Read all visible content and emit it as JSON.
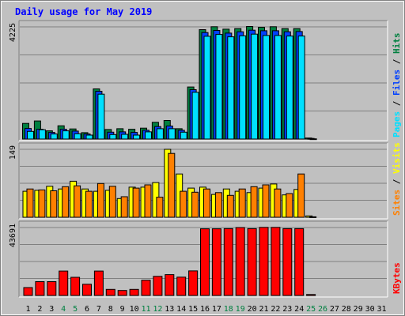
{
  "chart_data": {
    "type": "bar",
    "title": "Daily usage for May 2019",
    "colors": {
      "background": "#c0c0c0",
      "plot": "#c0c0c0",
      "gridline": "#808080",
      "title": "#0000ff",
      "hits": "#008040",
      "files": "#0040ff",
      "pages": "#00e0ff",
      "visits": "#ffff00",
      "sites": "#ff8000",
      "kbytes": "#ff0000",
      "weekend_day": "#008040",
      "weekday": "#000000"
    },
    "categories": [
      "1",
      "2",
      "3",
      "4",
      "5",
      "6",
      "7",
      "8",
      "9",
      "10",
      "11",
      "12",
      "13",
      "14",
      "15",
      "16",
      "17",
      "18",
      "19",
      "20",
      "21",
      "22",
      "23",
      "24",
      "25",
      "26",
      "27",
      "28",
      "29",
      "30",
      "31"
    ],
    "weekend_days": [
      "4",
      "5",
      "11",
      "12",
      "18",
      "19",
      "25",
      "26"
    ],
    "panels": [
      {
        "name": "hits-files-pages",
        "ymax_label": "4225",
        "ylim": [
          0,
          4225
        ],
        "legend": [
          {
            "text": "Pages",
            "color": "#00e0ff"
          },
          {
            "text": " / ",
            "color": "#000000"
          },
          {
            "text": "Files",
            "color": "#0040ff"
          },
          {
            "text": " / ",
            "color": "#000000"
          },
          {
            "text": "Hits",
            "color": "#008040"
          }
        ],
        "series": [
          {
            "name": "Hits",
            "color": "#008040",
            "values": [
              590,
              680,
              310,
              500,
              380,
              240,
              1890,
              360,
              390,
              370,
              410,
              630,
              700,
              390,
              1960,
              4120,
              4230,
              4140,
              4160,
              4240,
              4210,
              4230,
              4160,
              4160,
              40,
              0,
              0,
              0,
              0,
              0,
              0
            ]
          },
          {
            "name": "Files",
            "color": "#0040ff",
            "values": [
              400,
              370,
              250,
              370,
              300,
              190,
              1800,
              260,
              270,
              250,
              330,
              470,
              490,
              330,
              1860,
              4010,
              4090,
              3990,
              4040,
              4100,
              4080,
              4080,
              4040,
              4050,
              25,
              0,
              0,
              0,
              0,
              0,
              0
            ]
          },
          {
            "name": "Pages",
            "color": "#00e0ff",
            "values": [
              290,
              350,
              190,
              310,
              200,
              150,
              1690,
              170,
              180,
              150,
              270,
              390,
              390,
              260,
              1760,
              3870,
              3940,
              3850,
              3890,
              3950,
              3900,
              3900,
              3880,
              3880,
              10,
              0,
              0,
              0,
              0,
              0,
              0
            ]
          }
        ]
      },
      {
        "name": "visits-sites",
        "ymax_label": "149",
        "ylim": [
          0,
          149
        ],
        "legend": [
          {
            "text": "Sites",
            "color": "#ff8000"
          },
          {
            "text": " / ",
            "color": "#000000"
          },
          {
            "text": "Visits",
            "color": "#ffff00"
          }
        ],
        "series": [
          {
            "name": "Visits",
            "color": "#ffff00",
            "values": [
              57,
              59,
              68,
              62,
              79,
              62,
              57,
              59,
              41,
              66,
              66,
              76,
              149,
              95,
              64,
              66,
              50,
              62,
              57,
              54,
              64,
              73,
              49,
              61,
              3,
              0,
              0,
              0,
              0,
              0,
              0
            ]
          },
          {
            "name": "Sites",
            "color": "#ff8000",
            "values": [
              62,
              60,
              58,
              67,
              69,
              57,
              74,
              68,
              45,
              64,
              71,
              44,
              140,
              57,
              55,
              62,
              54,
              48,
              62,
              67,
              71,
              62,
              52,
              95,
              1,
              0,
              0,
              0,
              0,
              0,
              0
            ]
          }
        ]
      },
      {
        "name": "kbytes",
        "ymax_label": "43691",
        "ylim": [
          0,
          43691
        ],
        "legend": [
          {
            "text": "KBytes",
            "color": "#ff0000"
          }
        ],
        "series": [
          {
            "name": "KBytes",
            "color": "#ff0000",
            "values": [
              5100,
              8900,
              8900,
              15700,
              11700,
              7200,
              15700,
              3900,
              3200,
              3900,
              9800,
              12300,
              13400,
              11800,
              15800,
              42900,
              42900,
              43000,
              43700,
              43000,
              43800,
              43800,
              43000,
              43000,
              600,
              0,
              0,
              0,
              0,
              0,
              0
            ]
          }
        ]
      }
    ]
  }
}
